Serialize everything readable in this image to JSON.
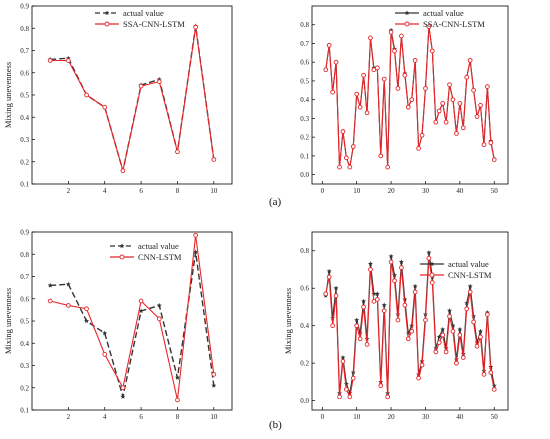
{
  "panel_labels": {
    "a": "(a)",
    "b": "(b)"
  },
  "chart_data": [
    {
      "type": "line",
      "ylabel": "Mixing unevenness",
      "xlim": [
        0,
        11
      ],
      "ylim": [
        0.1,
        0.9
      ],
      "xticks": [
        2,
        4,
        6,
        8,
        10
      ],
      "yticks": [
        0.1,
        0.2,
        0.3,
        0.4,
        0.5,
        0.6,
        0.7,
        0.8,
        0.9
      ],
      "grid": false,
      "legend": "top-center",
      "x": [
        1,
        2,
        3,
        4,
        5,
        6,
        7,
        8,
        9,
        10
      ],
      "series": [
        {
          "name": "actual value",
          "color": "#333333",
          "style": "dashed",
          "marker": "star",
          "values": [
            0.66,
            0.665,
            0.5,
            0.445,
            0.16,
            0.545,
            0.57,
            0.245,
            0.81,
            0.21
          ]
        },
        {
          "name": "SSA-CNN-LSTM",
          "color": "#e8262a",
          "style": "solid",
          "marker": "circle",
          "values": [
            0.655,
            0.655,
            0.5,
            0.445,
            0.16,
            0.54,
            0.56,
            0.245,
            0.805,
            0.21
          ]
        }
      ]
    },
    {
      "type": "line",
      "ylabel": "",
      "xlim": [
        -3,
        54
      ],
      "ylim": [
        -0.05,
        0.9
      ],
      "xticks": [
        0,
        10,
        20,
        30,
        40,
        50
      ],
      "yticks": [
        0.0,
        0.1,
        0.2,
        0.3,
        0.4,
        0.5,
        0.6,
        0.7,
        0.8
      ],
      "grid": false,
      "legend": "top-right",
      "x": [
        1,
        2,
        3,
        4,
        5,
        6,
        7,
        8,
        9,
        10,
        11,
        12,
        13,
        14,
        15,
        16,
        17,
        18,
        19,
        20,
        21,
        22,
        23,
        24,
        25,
        26,
        27,
        28,
        29,
        30,
        31,
        32,
        33,
        34,
        35,
        36,
        37,
        38,
        39,
        40,
        41,
        42,
        43,
        44,
        45,
        46,
        47,
        48,
        49,
        50
      ],
      "series": [
        {
          "name": "actual value",
          "color": "#333333",
          "style": "solid",
          "marker": "star",
          "values": [
            0.56,
            0.69,
            0.44,
            0.6,
            0.04,
            0.23,
            0.09,
            0.04,
            0.15,
            0.43,
            0.36,
            0.53,
            0.33,
            0.73,
            0.57,
            0.57,
            0.1,
            0.51,
            0.04,
            0.77,
            0.67,
            0.46,
            0.74,
            0.54,
            0.36,
            0.4,
            0.61,
            0.14,
            0.21,
            0.46,
            0.79,
            0.66,
            0.28,
            0.34,
            0.38,
            0.28,
            0.48,
            0.4,
            0.22,
            0.38,
            0.25,
            0.52,
            0.61,
            0.45,
            0.31,
            0.37,
            0.16,
            0.47,
            0.18,
            0.08
          ]
        },
        {
          "name": "SSA-CNN-LSTM",
          "color": "#e8262a",
          "style": "solid",
          "marker": "circle",
          "values": [
            0.56,
            0.69,
            0.44,
            0.6,
            0.04,
            0.23,
            0.09,
            0.04,
            0.15,
            0.43,
            0.36,
            0.53,
            0.33,
            0.73,
            0.56,
            0.57,
            0.1,
            0.51,
            0.04,
            0.76,
            0.66,
            0.46,
            0.74,
            0.53,
            0.36,
            0.4,
            0.61,
            0.14,
            0.21,
            0.46,
            0.79,
            0.66,
            0.28,
            0.34,
            0.38,
            0.28,
            0.48,
            0.4,
            0.22,
            0.38,
            0.25,
            0.52,
            0.61,
            0.45,
            0.31,
            0.37,
            0.16,
            0.47,
            0.17,
            0.08
          ]
        }
      ]
    },
    {
      "type": "line",
      "ylabel": "Mixing unevenness",
      "xlim": [
        0,
        11
      ],
      "ylim": [
        0.1,
        0.9
      ],
      "xticks": [
        2,
        4,
        6,
        8,
        10
      ],
      "yticks": [
        0.1,
        0.2,
        0.3,
        0.4,
        0.5,
        0.6,
        0.7,
        0.8,
        0.9
      ],
      "grid": false,
      "legend": "top-center",
      "x": [
        1,
        2,
        3,
        4,
        5,
        6,
        7,
        8,
        9,
        10
      ],
      "series": [
        {
          "name": "actual value",
          "color": "#333333",
          "style": "dashed",
          "marker": "star",
          "values": [
            0.66,
            0.665,
            0.5,
            0.445,
            0.16,
            0.545,
            0.57,
            0.245,
            0.81,
            0.21
          ]
        },
        {
          "name": "CNN-LSTM",
          "color": "#e8262a",
          "style": "solid",
          "marker": "circle",
          "values": [
            0.59,
            0.57,
            0.555,
            0.35,
            0.2,
            0.59,
            0.51,
            0.145,
            0.885,
            0.26
          ]
        }
      ]
    },
    {
      "type": "line",
      "ylabel": "Mixing unevenness",
      "xlim": [
        -3,
        54
      ],
      "ylim": [
        -0.05,
        0.9
      ],
      "xticks": [
        0,
        10,
        20,
        30,
        40,
        50
      ],
      "yticks": [
        0.0,
        0.2,
        0.4,
        0.6,
        0.8
      ],
      "grid": false,
      "legend": "top-right",
      "x": [
        1,
        2,
        3,
        4,
        5,
        6,
        7,
        8,
        9,
        10,
        11,
        12,
        13,
        14,
        15,
        16,
        17,
        18,
        19,
        20,
        21,
        22,
        23,
        24,
        25,
        26,
        27,
        28,
        29,
        30,
        31,
        32,
        33,
        34,
        35,
        36,
        37,
        38,
        39,
        40,
        41,
        42,
        43,
        44,
        45,
        46,
        47,
        48,
        49,
        50
      ],
      "series": [
        {
          "name": "actual value",
          "color": "#333333",
          "style": "solid",
          "marker": "star",
          "values": [
            0.56,
            0.69,
            0.44,
            0.6,
            0.04,
            0.23,
            0.09,
            0.04,
            0.15,
            0.43,
            0.36,
            0.53,
            0.33,
            0.73,
            0.57,
            0.57,
            0.1,
            0.51,
            0.04,
            0.77,
            0.67,
            0.46,
            0.74,
            0.54,
            0.36,
            0.4,
            0.61,
            0.14,
            0.21,
            0.46,
            0.79,
            0.66,
            0.28,
            0.34,
            0.38,
            0.28,
            0.48,
            0.4,
            0.22,
            0.38,
            0.25,
            0.52,
            0.61,
            0.45,
            0.31,
            0.37,
            0.16,
            0.47,
            0.18,
            0.08
          ]
        },
        {
          "name": "CNN-LSTM",
          "color": "#e8262a",
          "style": "solid",
          "marker": "circle",
          "values": [
            0.57,
            0.66,
            0.4,
            0.56,
            0.02,
            0.21,
            0.06,
            0.02,
            0.12,
            0.4,
            0.33,
            0.5,
            0.3,
            0.7,
            0.53,
            0.54,
            0.08,
            0.48,
            0.02,
            0.74,
            0.64,
            0.43,
            0.71,
            0.51,
            0.33,
            0.37,
            0.58,
            0.12,
            0.19,
            0.43,
            0.76,
            0.63,
            0.26,
            0.31,
            0.35,
            0.26,
            0.45,
            0.37,
            0.2,
            0.35,
            0.23,
            0.49,
            0.58,
            0.42,
            0.29,
            0.34,
            0.14,
            0.46,
            0.15,
            0.06
          ]
        }
      ]
    }
  ]
}
